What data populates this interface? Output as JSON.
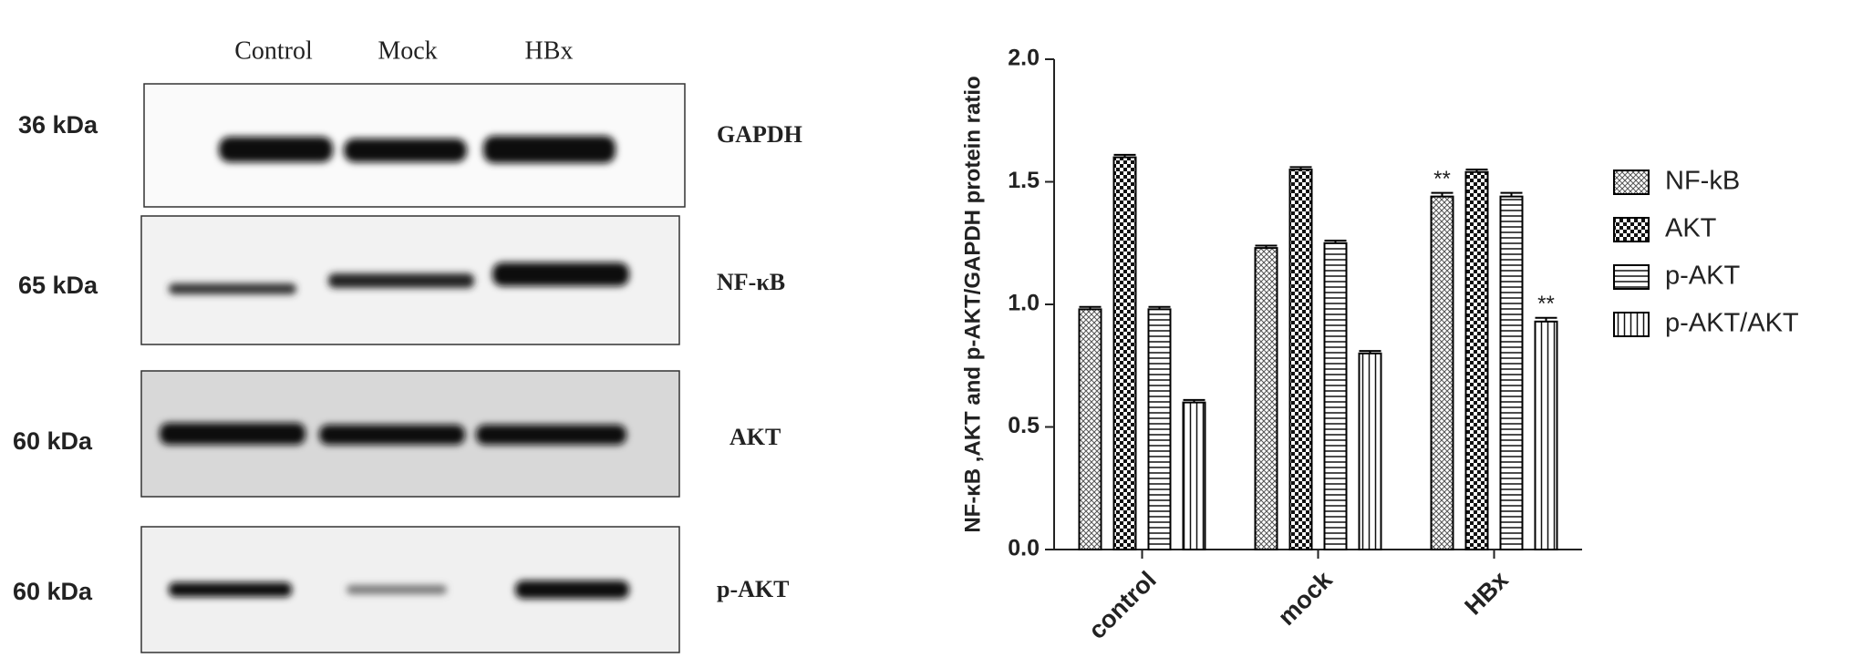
{
  "blot": {
    "lanes": [
      "Control",
      "Mock",
      "HBx"
    ],
    "rows": [
      {
        "size": "36 kDa",
        "protein": "GAPDH"
      },
      {
        "size": "65 kDa",
        "protein": "NF-κB"
      },
      {
        "size": "60 kDa",
        "protein": "AKT"
      },
      {
        "size": "60 kDa",
        "protein": "p-AKT"
      }
    ]
  },
  "chart_data": {
    "type": "bar",
    "y_label": "NF-κB ,AKT and p-AKT/GAPDH protein ratio",
    "categories": [
      "control",
      "mock",
      "HBx"
    ],
    "series": [
      {
        "name": "NF-kB",
        "color": "#000000",
        "pattern": "crosshatch",
        "values": [
          0.98,
          1.23,
          1.44
        ],
        "errors": [
          0.01,
          0.01,
          0.015
        ]
      },
      {
        "name": "AKT",
        "color": "#000000",
        "pattern": "checker",
        "values": [
          1.6,
          1.55,
          1.54
        ],
        "errors": [
          0.01,
          0.01,
          0.01
        ]
      },
      {
        "name": "p-AKT",
        "color": "#000000",
        "pattern": "horizontal",
        "values": [
          0.98,
          1.25,
          1.44
        ],
        "errors": [
          0.01,
          0.01,
          0.015
        ]
      },
      {
        "name": "p-AKT/AKT",
        "color": "#000000",
        "pattern": "vertical",
        "values": [
          0.6,
          0.8,
          0.93
        ],
        "errors": [
          0.01,
          0.01,
          0.015
        ]
      }
    ],
    "annotations": [
      {
        "text": "**",
        "series": "NF-kB",
        "category": "HBx"
      },
      {
        "text": "**",
        "series": "p-AKT/AKT",
        "category": "HBx"
      }
    ],
    "ylim": [
      0,
      2
    ],
    "yticks": [
      {
        "value": 0,
        "label": "0.0"
      },
      {
        "value": 0.5,
        "label": "0.5"
      },
      {
        "value": 1,
        "label": "1.0"
      },
      {
        "value": 1.5,
        "label": "1.5"
      },
      {
        "value": 2,
        "label": "2.0"
      }
    ],
    "legend": "right"
  }
}
